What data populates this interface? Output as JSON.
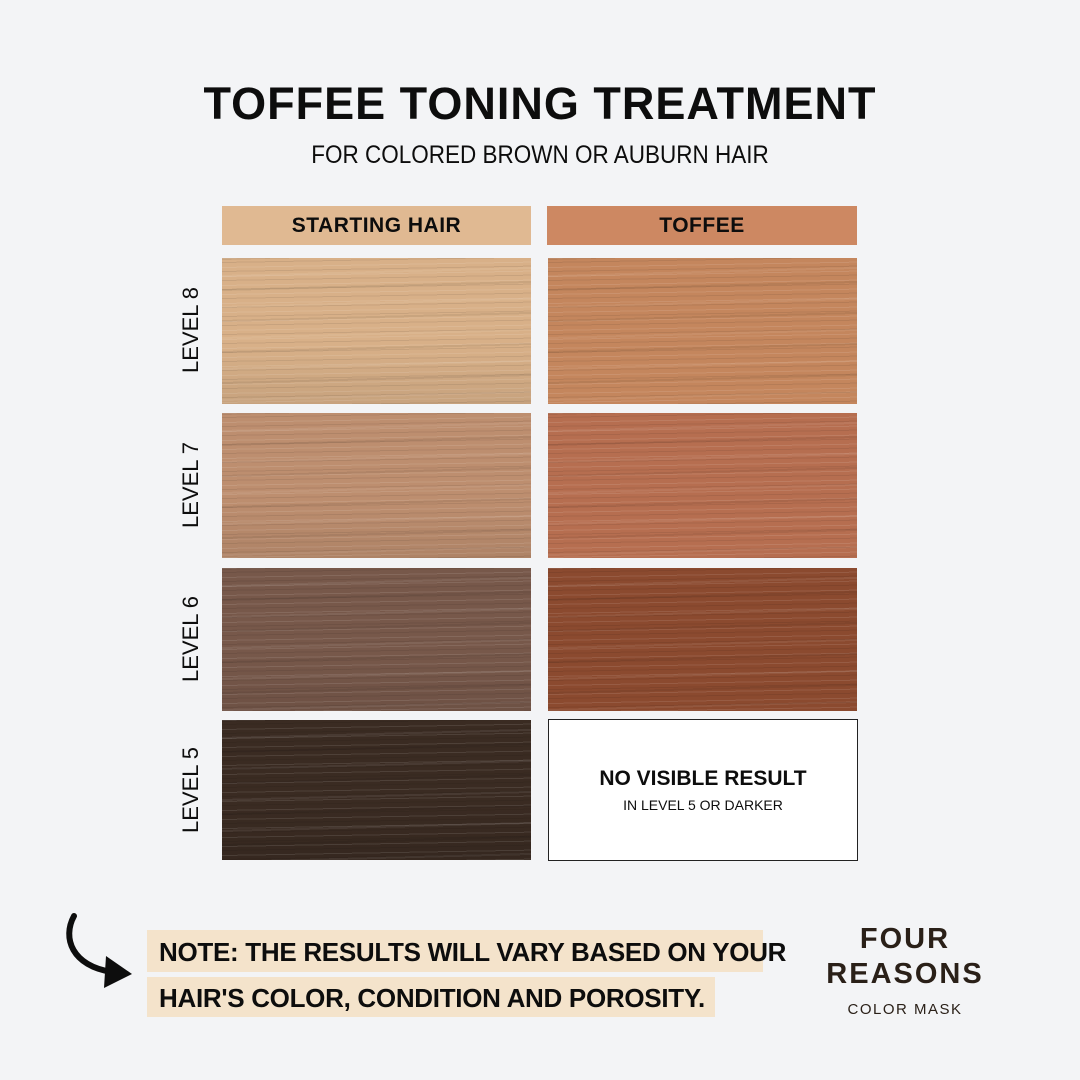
{
  "title": "TOFFEE TONING TREATMENT",
  "subtitle": "FOR COLORED BROWN OR AUBURN HAIR",
  "columns": [
    {
      "label": "STARTING HAIR",
      "color": "#e0b992"
    },
    {
      "label": "TOFFEE",
      "color": "#cd8862"
    }
  ],
  "rows": [
    {
      "level": "LEVEL 8",
      "starting_color": "#d8b088",
      "toffee_color": "#c4865d"
    },
    {
      "level": "LEVEL 7",
      "starting_color": "#bd8e6f",
      "toffee_color": "#b66e50"
    },
    {
      "level": "LEVEL 6",
      "starting_color": "#77584a",
      "toffee_color": "#8b4a2f"
    },
    {
      "level": "LEVEL 5",
      "starting_color": "#3a2b22",
      "toffee_result": {
        "title": "NO VISIBLE RESULT",
        "detail": "IN LEVEL 5 OR DARKER"
      }
    }
  ],
  "note": {
    "line1": "NOTE: THE RESULTS WILL VARY BASED ON YOUR",
    "line2": "HAIR'S COLOR, CONDITION AND POROSITY.",
    "icon": "curved-arrow-icon",
    "highlight": "#f4e3cb"
  },
  "logo": {
    "line1": "FOUR",
    "line2": "REASONS",
    "line3": "COLOR MASK"
  }
}
